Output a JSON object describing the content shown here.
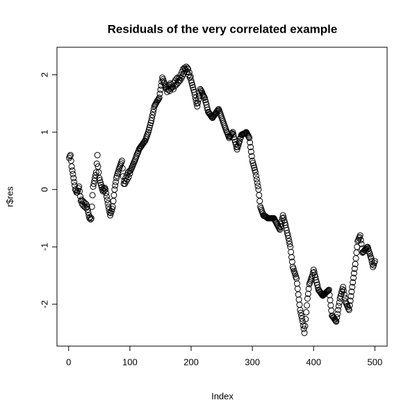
{
  "chart_data": {
    "type": "scatter",
    "title": "Residuals of the very correlated example",
    "x_label": "Index",
    "y_label": "r$res",
    "xlim": [
      -19,
      520
    ],
    "ylim": [
      -2.73,
      2.48
    ],
    "xticks": [
      0,
      100,
      200,
      300,
      400,
      500
    ],
    "yticks": [
      -2,
      -1,
      0,
      1,
      2
    ],
    "color": "#000000",
    "x": [
      1,
      2,
      3,
      4,
      5,
      6,
      7,
      8,
      9,
      10,
      11,
      12,
      13,
      14,
      15,
      16,
      17,
      18,
      19,
      20,
      21,
      22,
      23,
      24,
      25,
      26,
      27,
      28,
      29,
      30,
      31,
      32,
      33,
      34,
      35,
      36,
      37,
      38,
      39,
      40,
      41,
      42,
      43,
      44,
      45,
      46,
      47,
      48,
      49,
      50,
      51,
      52,
      53,
      54,
      55,
      56,
      57,
      58,
      59,
      60,
      61,
      62,
      63,
      64,
      65,
      66,
      67,
      68,
      69,
      70,
      71,
      72,
      73,
      74,
      75,
      76,
      77,
      78,
      79,
      80,
      81,
      82,
      83,
      84,
      85,
      86,
      87,
      88,
      89,
      90,
      91,
      92,
      93,
      94,
      95,
      96,
      97,
      98,
      99,
      100,
      101,
      102,
      103,
      104,
      105,
      106,
      107,
      108,
      109,
      110,
      111,
      112,
      113,
      114,
      115,
      116,
      117,
      118,
      119,
      120,
      121,
      122,
      123,
      124,
      125,
      126,
      127,
      128,
      129,
      130,
      131,
      132,
      133,
      134,
      135,
      136,
      137,
      138,
      139,
      140,
      141,
      142,
      143,
      144,
      145,
      146,
      147,
      148,
      149,
      150,
      151,
      152,
      153,
      154,
      155,
      156,
      157,
      158,
      159,
      160,
      161,
      162,
      163,
      164,
      165,
      166,
      167,
      168,
      169,
      170,
      171,
      172,
      173,
      174,
      175,
      176,
      177,
      178,
      179,
      180,
      181,
      182,
      183,
      184,
      185,
      186,
      187,
      188,
      189,
      190,
      191,
      192,
      193,
      194,
      195,
      196,
      197,
      198,
      199,
      200,
      201,
      202,
      203,
      204,
      205,
      206,
      207,
      208,
      209,
      210,
      211,
      212,
      213,
      214,
      215,
      216,
      217,
      218,
      219,
      220,
      221,
      222,
      223,
      224,
      225,
      226,
      227,
      228,
      229,
      230,
      231,
      232,
      233,
      234,
      235,
      236,
      237,
      238,
      239,
      240,
      241,
      242,
      243,
      244,
      245,
      246,
      247,
      248,
      249,
      250,
      251,
      252,
      253,
      254,
      255,
      256,
      257,
      258,
      259,
      260,
      261,
      262,
      263,
      264,
      265,
      266,
      267,
      268,
      269,
      270,
      271,
      272,
      273,
      274,
      275,
      276,
      277,
      278,
      279,
      280,
      281,
      282,
      283,
      284,
      285,
      286,
      287,
      288,
      289,
      290,
      291,
      292,
      293,
      294,
      295,
      296,
      297,
      298,
      299,
      300,
      301,
      302,
      303,
      304,
      305,
      306,
      307,
      308,
      309,
      310,
      311,
      312,
      313,
      314,
      315,
      316,
      317,
      318,
      319,
      320,
      321,
      322,
      323,
      324,
      325,
      326,
      327,
      328,
      329,
      330,
      331,
      332,
      333,
      334,
      335,
      336,
      337,
      338,
      339,
      340,
      341,
      342,
      343,
      344,
      345,
      346,
      347,
      348,
      349,
      350,
      351,
      352,
      353,
      354,
      355,
      356,
      357,
      358,
      359,
      360,
      361,
      362,
      363,
      364,
      365,
      366,
      367,
      368,
      369,
      370,
      371,
      372,
      373,
      374,
      375,
      376,
      377,
      378,
      379,
      380,
      381,
      382,
      383,
      384,
      385,
      386,
      387,
      388,
      389,
      390,
      391,
      392,
      393,
      394,
      395,
      396,
      397,
      398,
      399,
      400,
      401,
      402,
      403,
      404,
      405,
      406,
      407,
      408,
      409,
      410,
      411,
      412,
      413,
      414,
      415,
      416,
      417,
      418,
      419,
      420,
      421,
      422,
      423,
      424,
      425,
      426,
      427,
      428,
      429,
      430,
      431,
      432,
      433,
      434,
      435,
      436,
      437,
      438,
      439,
      440,
      441,
      442,
      443,
      444,
      445,
      446,
      447,
      448,
      449,
      450,
      451,
      452,
      453,
      454,
      455,
      456,
      457,
      458,
      459,
      460,
      461,
      462,
      463,
      464,
      465,
      466,
      467,
      468,
      469,
      470,
      471,
      472,
      473,
      474,
      475,
      476,
      477,
      478,
      479,
      480,
      481,
      482,
      483,
      484,
      485,
      486,
      487,
      488,
      489,
      490,
      491,
      492,
      493,
      494,
      495,
      496,
      497,
      498,
      499,
      500
    ],
    "values": [
      0.55,
      0.58,
      0.6,
      0.5,
      0.4,
      0.33,
      0.27,
      0.2,
      0.13,
      0.07,
      0.0,
      -0.02,
      -0.05,
      -0.05,
      -0.02,
      0.02,
      0.05,
      -0.03,
      -0.12,
      -0.2,
      -0.18,
      -0.25,
      -0.2,
      -0.28,
      -0.22,
      -0.3,
      -0.24,
      -0.32,
      -0.26,
      -0.3,
      -0.35,
      -0.4,
      -0.45,
      -0.5,
      -0.48,
      -0.52,
      -0.5,
      -0.3,
      -0.1,
      0.05,
      0.1,
      0.15,
      0.2,
      0.25,
      0.3,
      0.45,
      0.6,
      0.4,
      0.3,
      0.2,
      0.16,
      0.12,
      0.08,
      0.04,
      0.0,
      -0.03,
      0.02,
      -0.02,
      0.03,
      0.0,
      -0.06,
      -0.12,
      -0.18,
      -0.24,
      -0.3,
      -0.35,
      -0.4,
      -0.45,
      -0.41,
      -0.38,
      -0.34,
      -0.3,
      -0.2,
      -0.1,
      0.0,
      0.07,
      0.13,
      0.2,
      0.24,
      0.28,
      0.31,
      0.35,
      0.38,
      0.41,
      0.44,
      0.47,
      0.5,
      0.37,
      0.23,
      0.1,
      0.15,
      0.1,
      0.2,
      0.14,
      0.25,
      0.18,
      0.3,
      0.22,
      0.32,
      0.28,
      0.33,
      0.35,
      0.38,
      0.4,
      0.43,
      0.45,
      0.48,
      0.5,
      0.53,
      0.56,
      0.59,
      0.62,
      0.64,
      0.67,
      0.7,
      0.72,
      0.73,
      0.75,
      0.76,
      0.78,
      0.79,
      0.81,
      0.82,
      0.84,
      0.85,
      0.88,
      0.91,
      0.94,
      0.97,
      1.0,
      1.04,
      1.08,
      1.12,
      1.16,
      1.2,
      1.25,
      1.3,
      1.35,
      1.4,
      1.45,
      1.47,
      1.49,
      1.51,
      1.53,
      1.55,
      1.56,
      1.58,
      1.6,
      1.67,
      1.74,
      1.81,
      1.88,
      1.95,
      1.92,
      1.89,
      1.86,
      1.83,
      1.8,
      1.78,
      1.75,
      1.7,
      1.8,
      1.74,
      1.82,
      1.72,
      1.85,
      1.76,
      1.83,
      1.78,
      1.8,
      1.75,
      1.86,
      1.8,
      1.9,
      1.82,
      1.93,
      1.84,
      1.95,
      1.87,
      1.9,
      1.95,
      1.9,
      2.0,
      1.94,
      2.05,
      1.98,
      2.1,
      2.02,
      2.12,
      2.1,
      2.08,
      2.14,
      2.05,
      2.12,
      2.1,
      2.0,
      2.04,
      1.95,
      1.97,
      1.9,
      1.86,
      1.82,
      1.78,
      1.74,
      1.7,
      1.65,
      1.6,
      1.55,
      1.5,
      1.45,
      1.51,
      1.57,
      1.63,
      1.69,
      1.75,
      1.73,
      1.71,
      1.69,
      1.66,
      1.64,
      1.62,
      1.6,
      1.56,
      1.52,
      1.48,
      1.43,
      1.39,
      1.35,
      1.34,
      1.32,
      1.31,
      1.29,
      1.28,
      1.26,
      1.25,
      1.27,
      1.28,
      1.3,
      1.31,
      1.33,
      1.34,
      1.36,
      1.37,
      1.39,
      1.4,
      1.37,
      1.34,
      1.31,
      1.28,
      1.25,
      1.22,
      1.19,
      1.16,
      1.13,
      1.1,
      1.07,
      1.04,
      1.01,
      0.99,
      0.96,
      0.93,
      0.9,
      0.92,
      0.93,
      0.95,
      0.97,
      0.98,
      1.0,
      0.96,
      0.91,
      0.87,
      0.83,
      0.79,
      0.74,
      0.7,
      0.74,
      0.77,
      0.81,
      0.84,
      0.88,
      0.91,
      0.95,
      0.96,
      0.96,
      0.97,
      0.97,
      0.98,
      0.98,
      0.99,
      1.0,
      0.98,
      0.96,
      0.94,
      0.92,
      0.9,
      0.82,
      0.74,
      0.66,
      0.58,
      0.5,
      0.46,
      0.42,
      0.38,
      0.34,
      0.3,
      0.24,
      0.18,
      0.12,
      0.06,
      0.0,
      -0.1,
      -0.2,
      -0.3,
      -0.33,
      -0.36,
      -0.39,
      -0.42,
      -0.45,
      -0.46,
      -0.46,
      -0.47,
      -0.47,
      -0.48,
      -0.49,
      -0.5,
      -0.5,
      -0.5,
      -0.5,
      -0.5,
      -0.5,
      -0.5,
      -0.5,
      -0.5,
      -0.5,
      -0.5,
      -0.52,
      -0.54,
      -0.56,
      -0.58,
      -0.6,
      -0.62,
      -0.64,
      -0.66,
      -0.68,
      -0.7,
      -0.65,
      -0.6,
      -0.55,
      -0.5,
      -0.45,
      -0.49,
      -0.54,
      -0.58,
      -0.62,
      -0.67,
      -0.71,
      -0.76,
      -0.8,
      -0.85,
      -0.9,
      -0.95,
      -1.0,
      -1.09,
      -1.18,
      -1.26,
      -1.35,
      -1.38,
      -1.42,
      -1.45,
      -1.48,
      -1.52,
      -1.55,
      -1.64,
      -1.73,
      -1.83,
      -1.92,
      -2.01,
      -2.1,
      -2.15,
      -2.2,
      -2.25,
      -2.3,
      -2.37,
      -2.43,
      -2.5,
      -2.38,
      -2.26,
      -2.14,
      -2.02,
      -1.9,
      -1.82,
      -1.73,
      -1.65,
      -1.62,
      -1.59,
      -1.56,
      -1.53,
      -1.5,
      -1.45,
      -1.4,
      -1.44,
      -1.49,
      -1.53,
      -1.58,
      -1.62,
      -1.66,
      -1.71,
      -1.75,
      -1.76,
      -1.78,
      -1.79,
      -1.81,
      -1.82,
      -1.84,
      -1.85,
      -1.84,
      -1.83,
      -1.82,
      -1.81,
      -1.8,
      -1.79,
      -1.78,
      -1.77,
      -1.76,
      -1.75,
      -1.84,
      -1.93,
      -2.02,
      -2.11,
      -2.2,
      -2.21,
      -2.23,
      -2.24,
      -2.26,
      -2.27,
      -2.29,
      -2.3,
      -2.23,
      -2.17,
      -2.1,
      -2.03,
      -1.97,
      -1.9,
      -1.86,
      -1.82,
      -1.78,
      -1.74,
      -1.7,
      -1.76,
      -1.83,
      -1.89,
      -1.95,
      -1.98,
      -2.0,
      -2.03,
      -2.05,
      -2.08,
      -2.1,
      -2.02,
      -1.94,
      -1.86,
      -1.78,
      -1.7,
      -1.62,
      -1.54,
      -1.46,
      -1.38,
      -1.3,
      -1.2,
      -1.1,
      -1.0,
      -0.9,
      -0.88,
      -0.85,
      -0.83,
      -0.8,
      -0.88,
      -0.95,
      -1.03,
      -1.1,
      -1.09,
      -1.08,
      -1.06,
      -1.05,
      -1.04,
      -1.03,
      -1.01,
      -1.0,
      -1.03,
      -1.07,
      -1.1,
      -1.13,
      -1.17,
      -1.2,
      -1.25,
      -1.3,
      -1.35,
      -1.32,
      -1.28,
      -1.25
    ]
  }
}
